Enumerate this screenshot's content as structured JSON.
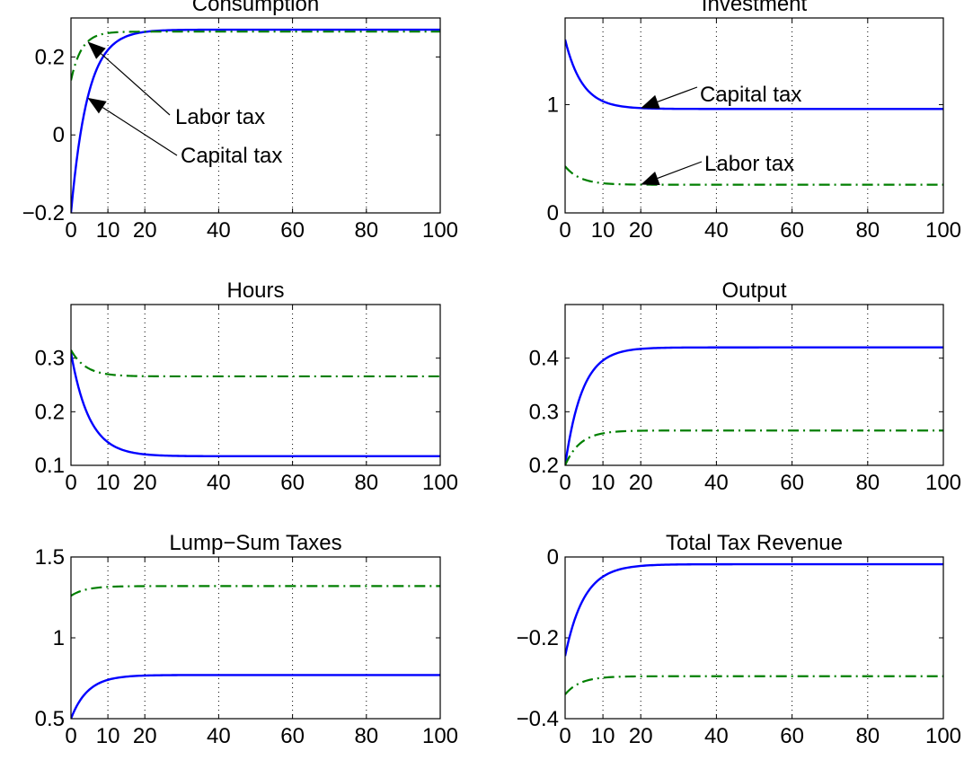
{
  "colors": {
    "capital_tax": "#0000ff",
    "labor_tax": "#007f00"
  },
  "chart_data": [
    {
      "type": "line",
      "title": "Consumption",
      "xlim": [
        0,
        100
      ],
      "ylim": [
        -0.2,
        0.3
      ],
      "xticks": [
        0,
        10,
        20,
        40,
        60,
        80,
        100
      ],
      "xtick_labels": [
        "0",
        "10",
        "20",
        "40",
        "60",
        "80",
        "100"
      ],
      "grid_x": [
        10,
        20,
        40,
        60,
        80
      ],
      "yticks": [
        -0.2,
        0,
        0.2
      ],
      "ytick_labels": [
        "−0.2",
        "0",
        "0.2"
      ],
      "series": [
        {
          "name": "Capital tax",
          "style": "solid",
          "start": -0.2,
          "end": 0.27,
          "rate": 0.22
        },
        {
          "name": "Labor tax",
          "style": "dashdot",
          "start": 0.14,
          "end": 0.265,
          "rate": 0.35
        }
      ],
      "annotations": [
        {
          "text": "Labor tax",
          "series": "Labor tax",
          "at_x": 4.5
        },
        {
          "text": "Capital tax",
          "series": "Capital tax",
          "at_x": 4.5
        }
      ]
    },
    {
      "type": "line",
      "title": "Investment",
      "xlim": [
        0,
        100
      ],
      "ylim": [
        0,
        1.8
      ],
      "xticks": [
        0,
        10,
        20,
        40,
        60,
        80,
        100
      ],
      "xtick_labels": [
        "0",
        "10",
        "20",
        "40",
        "60",
        "80",
        "100"
      ],
      "grid_x": [
        10,
        20,
        40,
        60,
        80
      ],
      "yticks": [
        0,
        1
      ],
      "ytick_labels": [
        "0",
        "1"
      ],
      "series": [
        {
          "name": "Capital tax",
          "style": "solid",
          "start": 1.6,
          "end": 0.96,
          "rate": 0.22
        },
        {
          "name": "Labor tax",
          "style": "dashdot",
          "start": 0.43,
          "end": 0.26,
          "rate": 0.25
        }
      ],
      "annotations": [
        {
          "text": "Capital tax",
          "series": "Capital tax",
          "at_x": 20
        },
        {
          "text": "Labor tax",
          "series": "Labor tax",
          "at_x": 20
        }
      ]
    },
    {
      "type": "line",
      "title": "Hours",
      "xlim": [
        0,
        100
      ],
      "ylim": [
        0.1,
        0.4
      ],
      "xticks": [
        0,
        10,
        20,
        40,
        60,
        80,
        100
      ],
      "xtick_labels": [
        "0",
        "10",
        "20",
        "40",
        "60",
        "80",
        "100"
      ],
      "grid_x": [
        10,
        20,
        40,
        60,
        80
      ],
      "yticks": [
        0.1,
        0.2,
        0.3
      ],
      "ytick_labels": [
        "0.1",
        "0.2",
        "0.3"
      ],
      "series": [
        {
          "name": "Capital tax",
          "style": "solid",
          "start": 0.31,
          "end": 0.117,
          "rate": 0.2
        },
        {
          "name": "Labor tax",
          "style": "dashdot",
          "start": 0.315,
          "end": 0.266,
          "rate": 0.25
        }
      ],
      "annotations": []
    },
    {
      "type": "line",
      "title": "Output",
      "xlim": [
        0,
        100
      ],
      "ylim": [
        0.2,
        0.5
      ],
      "xticks": [
        0,
        10,
        20,
        40,
        60,
        80,
        100
      ],
      "xtick_labels": [
        "0",
        "10",
        "20",
        "40",
        "60",
        "80",
        "100"
      ],
      "grid_x": [
        10,
        20,
        40,
        60,
        80
      ],
      "yticks": [
        0.2,
        0.3,
        0.4
      ],
      "ytick_labels": [
        "0.2",
        "0.3",
        "0.4"
      ],
      "series": [
        {
          "name": "Capital tax",
          "style": "solid",
          "start": 0.2,
          "end": 0.42,
          "rate": 0.22
        },
        {
          "name": "Labor tax",
          "style": "dashdot",
          "start": 0.2,
          "end": 0.265,
          "rate": 0.25
        }
      ],
      "annotations": []
    },
    {
      "type": "line",
      "title": "Lump−Sum Taxes",
      "xlim": [
        0,
        100
      ],
      "ylim": [
        0.5,
        1.5
      ],
      "xticks": [
        0,
        10,
        20,
        40,
        60,
        80,
        100
      ],
      "xtick_labels": [
        "0",
        "10",
        "20",
        "40",
        "60",
        "80",
        "100"
      ],
      "grid_x": [
        10,
        20,
        40,
        60,
        80
      ],
      "yticks": [
        0.5,
        1,
        1.5
      ],
      "ytick_labels": [
        "0.5",
        "1",
        "1.5"
      ],
      "series": [
        {
          "name": "Capital tax",
          "style": "solid",
          "start": 0.5,
          "end": 0.77,
          "rate": 0.22
        },
        {
          "name": "Labor tax",
          "style": "dashdot",
          "start": 1.26,
          "end": 1.32,
          "rate": 0.25
        }
      ],
      "annotations": []
    },
    {
      "type": "line",
      "title": "Total Tax Revenue",
      "xlim": [
        0,
        100
      ],
      "ylim": [
        -0.4,
        0
      ],
      "xticks": [
        0,
        10,
        20,
        40,
        60,
        80,
        100
      ],
      "xtick_labels": [
        "0",
        "10",
        "20",
        "40",
        "60",
        "80",
        "100"
      ],
      "grid_x": [
        10,
        20,
        40,
        60,
        80
      ],
      "yticks": [
        -0.4,
        -0.2,
        0
      ],
      "ytick_labels": [
        "−0.4",
        "−0.2",
        "0"
      ],
      "series": [
        {
          "name": "Capital tax",
          "style": "solid",
          "start": -0.245,
          "end": -0.018,
          "rate": 0.2
        },
        {
          "name": "Labor tax",
          "style": "dashdot",
          "start": -0.34,
          "end": -0.295,
          "rate": 0.25
        }
      ],
      "annotations": []
    }
  ]
}
